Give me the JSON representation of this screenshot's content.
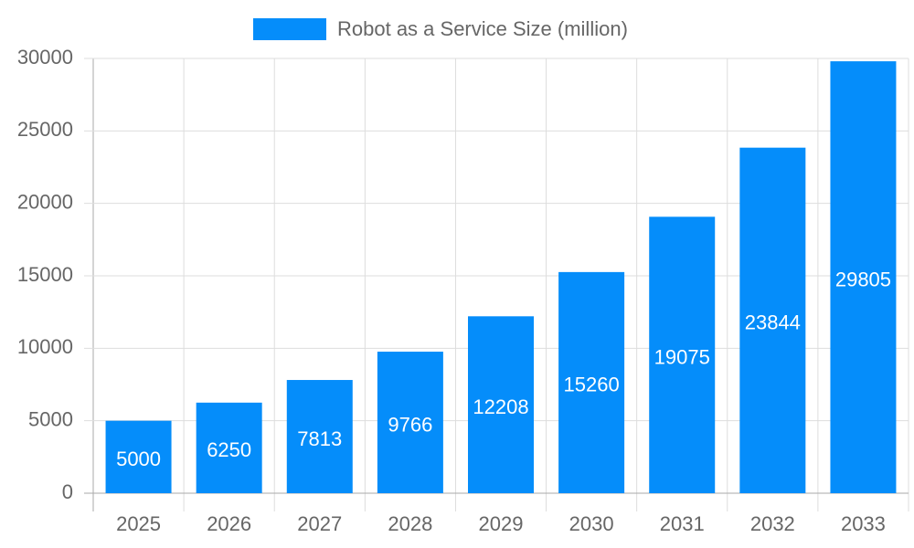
{
  "chart_data": {
    "type": "bar",
    "categories": [
      "2025",
      "2026",
      "2027",
      "2028",
      "2029",
      "2030",
      "2031",
      "2032",
      "2033"
    ],
    "series": [
      {
        "name": "Robot as a Service Size (million)",
        "color": "#058dfa",
        "values": [
          5000,
          6250,
          7813,
          9766,
          12208,
          15260,
          19075,
          23844,
          29805
        ]
      }
    ],
    "ylim": [
      0,
      30000
    ],
    "yticks": [
      0,
      5000,
      10000,
      15000,
      20000,
      25000,
      30000
    ],
    "grid": true,
    "legend": "top",
    "data_labels": true
  }
}
